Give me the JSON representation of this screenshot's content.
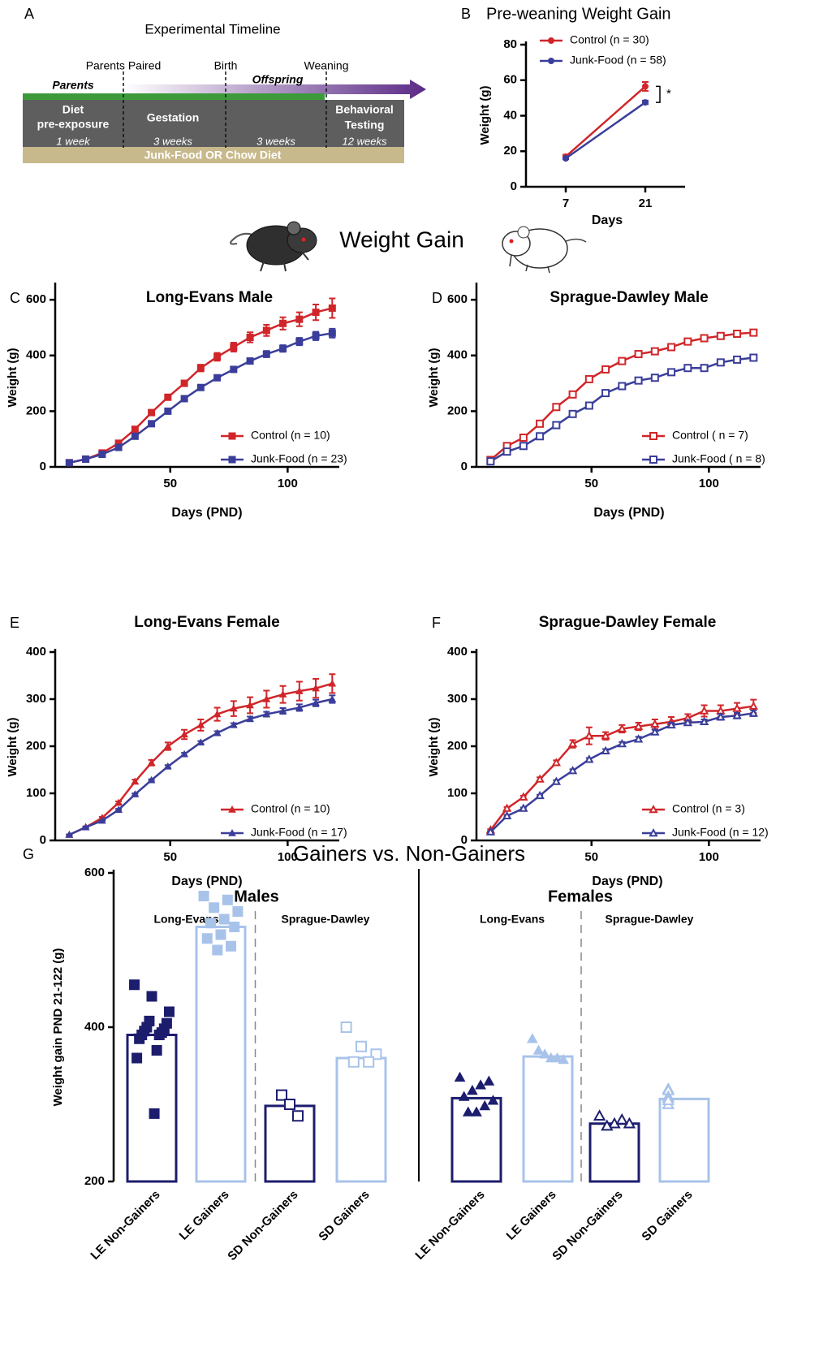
{
  "panel_labels": [
    "A",
    "B",
    "C",
    "D",
    "E",
    "F",
    "G"
  ],
  "timeline": {
    "title": "Experimental Timeline",
    "markers": [
      "Parents Paired",
      "Birth",
      "Weaning"
    ],
    "phases": [
      "Parents",
      "Offspring"
    ],
    "blocks": [
      {
        "label": [
          "Diet",
          "pre-exposure"
        ],
        "duration": "1 week"
      },
      {
        "label": [
          "Gestation"
        ],
        "duration": "3 weeks"
      },
      {
        "duration": "3 weeks"
      },
      {
        "label": [
          "Behavioral",
          "Testing"
        ],
        "duration": "12 weeks"
      }
    ],
    "diet": "Junk-Food OR Chow Diet"
  },
  "headings": [
    "Weight Gain"
  ],
  "chart_data": [
    {
      "type": "line",
      "title": "Pre-weaning Weight Gain",
      "x_label": "Days",
      "y_label": "Weight (g)",
      "x": [
        7,
        21
      ],
      "xlim": [
        0,
        28
      ],
      "xticks": [
        7,
        21
      ],
      "ylim": [
        0,
        80
      ],
      "yticks": [
        0,
        20,
        40,
        60,
        80
      ],
      "legend": "upper left",
      "annotations": [
        "*"
      ],
      "series": [
        {
          "name": "Control (n = 30)",
          "color": "#d0262a",
          "marker": "circle",
          "values": [
            17,
            56.5
          ],
          "errors": [
            1,
            2.5
          ]
        },
        {
          "name": "Junk-Food (n = 58)",
          "color": "#3a3e9a",
          "marker": "circle",
          "values": [
            16,
            47.5
          ],
          "errors": [
            0.5,
            1
          ]
        }
      ]
    },
    {
      "type": "line",
      "title": "Long-Evans Male",
      "x_label": "Days (PND)",
      "y_label": "Weight (g)",
      "x": [
        7,
        14,
        21,
        28,
        35,
        42,
        49,
        56,
        63,
        70,
        77,
        84,
        91,
        98,
        105,
        112,
        119
      ],
      "xlim": [
        1,
        122
      ],
      "xticks": [
        50,
        100
      ],
      "ylim": [
        0,
        650
      ],
      "yticks": [
        0,
        200,
        400,
        600
      ],
      "legend": "lower right",
      "series": [
        {
          "name": "Control (n = 10)",
          "color": "#d0262a",
          "marker": "square",
          "values": [
            15,
            28,
            50,
            85,
            135,
            195,
            250,
            300,
            355,
            395,
            430,
            465,
            490,
            515,
            530,
            555,
            570
          ],
          "errors": [
            2,
            2,
            3,
            4,
            5,
            6,
            8,
            10,
            12,
            14,
            16,
            18,
            20,
            22,
            25,
            28,
            35
          ]
        },
        {
          "name": "Junk-Food (n = 23)",
          "color": "#3a3e9a",
          "marker": "square",
          "values": [
            15,
            28,
            45,
            70,
            110,
            155,
            200,
            245,
            285,
            320,
            350,
            380,
            405,
            425,
            450,
            470,
            480
          ],
          "errors": [
            1,
            1,
            2,
            2,
            3,
            4,
            5,
            6,
            7,
            8,
            9,
            10,
            11,
            12,
            13,
            15,
            16
          ]
        }
      ]
    },
    {
      "type": "line",
      "title": "Sprague-Dawley Male",
      "x_label": "Days (PND)",
      "y_label": "Weight (g)",
      "x": [
        7,
        14,
        21,
        28,
        35,
        42,
        49,
        56,
        63,
        70,
        77,
        84,
        91,
        98,
        105,
        112,
        119
      ],
      "xlim": [
        1,
        122
      ],
      "xticks": [
        50,
        100
      ],
      "ylim": [
        0,
        650
      ],
      "yticks": [
        0,
        200,
        400,
        600
      ],
      "legend": "lower right",
      "series": [
        {
          "name": "Control ( n = 7)",
          "color": "#d0262a",
          "marker": "open-square",
          "values": [
            25,
            75,
            105,
            155,
            215,
            260,
            315,
            350,
            380,
            405,
            415,
            430,
            450,
            462,
            470,
            478,
            482
          ],
          "errors": [
            2,
            2,
            2,
            3,
            3,
            3,
            4,
            4,
            4,
            4,
            5,
            5,
            5,
            5,
            6,
            6,
            6
          ]
        },
        {
          "name": "Junk-Food ( n = 8)",
          "color": "#3a3e9a",
          "marker": "open-square",
          "values": [
            20,
            55,
            75,
            110,
            150,
            190,
            220,
            265,
            290,
            310,
            320,
            340,
            355,
            355,
            375,
            385,
            392
          ],
          "errors": [
            1,
            2,
            2,
            2,
            3,
            3,
            3,
            4,
            4,
            4,
            5,
            5,
            5,
            5,
            6,
            6,
            7
          ]
        }
      ]
    },
    {
      "type": "line",
      "title": "Long-Evans Female",
      "x_label": "Days (PND)",
      "y_label": "Weight (g)",
      "x": [
        7,
        14,
        21,
        28,
        35,
        42,
        49,
        56,
        63,
        70,
        77,
        84,
        91,
        98,
        105,
        112,
        119
      ],
      "xlim": [
        1,
        122
      ],
      "xticks": [
        50,
        100
      ],
      "ylim": [
        0,
        400
      ],
      "yticks": [
        0,
        100,
        200,
        300,
        400
      ],
      "legend": "lower right",
      "series": [
        {
          "name": "Control (n = 10)",
          "color": "#d0262a",
          "marker": "triangle",
          "values": [
            12,
            28,
            48,
            80,
            125,
            165,
            200,
            225,
            245,
            268,
            280,
            287,
            300,
            310,
            317,
            323,
            333
          ],
          "errors": [
            1,
            2,
            2,
            3,
            4,
            6,
            8,
            10,
            12,
            14,
            16,
            17,
            18,
            18,
            20,
            20,
            20
          ]
        },
        {
          "name": "Junk-Food (n = 17)",
          "color": "#3a3e9a",
          "marker": "triangle",
          "values": [
            12,
            28,
            42,
            65,
            98,
            128,
            157,
            183,
            208,
            228,
            245,
            258,
            268,
            275,
            282,
            292,
            300
          ],
          "errors": [
            1,
            1,
            1,
            2,
            2,
            2,
            3,
            3,
            3,
            4,
            4,
            5,
            5,
            6,
            7,
            7,
            8
          ]
        }
      ]
    },
    {
      "type": "line",
      "title": "Sprague-Dawley Female",
      "x_label": "Days (PND)",
      "y_label": "Weight (g)",
      "x": [
        7,
        14,
        21,
        28,
        35,
        42,
        49,
        56,
        63,
        70,
        77,
        84,
        91,
        98,
        105,
        112,
        119
      ],
      "xlim": [
        1,
        122
      ],
      "xticks": [
        50,
        100
      ],
      "ylim": [
        0,
        400
      ],
      "yticks": [
        0,
        100,
        200,
        300,
        400
      ],
      "legend": "lower right",
      "series": [
        {
          "name": "Control (n = 3)",
          "color": "#d0262a",
          "marker": "open-triangle",
          "values": [
            22,
            68,
            92,
            130,
            165,
            205,
            222,
            222,
            237,
            242,
            247,
            252,
            260,
            275,
            275,
            280,
            285
          ],
          "errors": [
            2,
            3,
            3,
            4,
            5,
            8,
            18,
            8,
            8,
            8,
            10,
            10,
            8,
            12,
            12,
            12,
            14
          ]
        },
        {
          "name": "Junk-Food (n = 12)",
          "color": "#3a3e9a",
          "marker": "open-triangle",
          "values": [
            18,
            52,
            68,
            95,
            125,
            148,
            172,
            190,
            205,
            215,
            230,
            245,
            250,
            252,
            262,
            265,
            270
          ],
          "errors": [
            1,
            2,
            2,
            2,
            3,
            3,
            3,
            4,
            4,
            5,
            5,
            5,
            5,
            5,
            6,
            6,
            6
          ]
        }
      ]
    },
    {
      "type": "bar_scatter",
      "title": "Gainers vs. Non-Gainers",
      "y_label": "Weight gain PND 21-122 (g)",
      "groups": [
        {
          "label": "Males",
          "subgroups": [
            "Long-Evans",
            "Sprague-Dawley"
          ]
        },
        {
          "label": "Females",
          "subgroups": [
            "Long-Evans",
            "Sprague-Dawley"
          ]
        }
      ],
      "categories": [
        "LE Non-Gainers",
        "LE Gainers",
        "SD Non-Gainers",
        "SD Gainers",
        "LE Non-Gainers",
        "LE Gainers",
        "SD Non-Gainers",
        "SD Gainers"
      ],
      "values": [
        390,
        530,
        298,
        360,
        308,
        362,
        275,
        307
      ],
      "points": [
        [
          455,
          440,
          420,
          408,
          405,
          400,
          398,
          395,
          393,
          390,
          390,
          385,
          370,
          360,
          288
        ],
        [
          570,
          565,
          555,
          550,
          540,
          535,
          530,
          520,
          515,
          505,
          500
        ],
        [
          312,
          300,
          285
        ],
        [
          400,
          375,
          365,
          355,
          355
        ],
        [
          335,
          330,
          325,
          318,
          310,
          305,
          298,
          290,
          290
        ],
        [
          385,
          370,
          365,
          360,
          360,
          358
        ],
        [
          285,
          275,
          275,
          272,
          280
        ],
        [
          320,
          318,
          310,
          308,
          300,
          300,
          305
        ]
      ],
      "colors": [
        "#1d1d6e",
        "#a8c3ea",
        "#1d1d6e",
        "#a8c3ea",
        "#1d1d6e",
        "#a8c3ea",
        "#1d1d6e",
        "#a8c3ea"
      ],
      "markers": [
        "square",
        "square",
        "open-square",
        "open-square",
        "triangle",
        "triangle",
        "open-triangle",
        "open-triangle"
      ],
      "ylim": [
        200,
        600
      ],
      "yticks": [
        200,
        400,
        600
      ]
    }
  ]
}
